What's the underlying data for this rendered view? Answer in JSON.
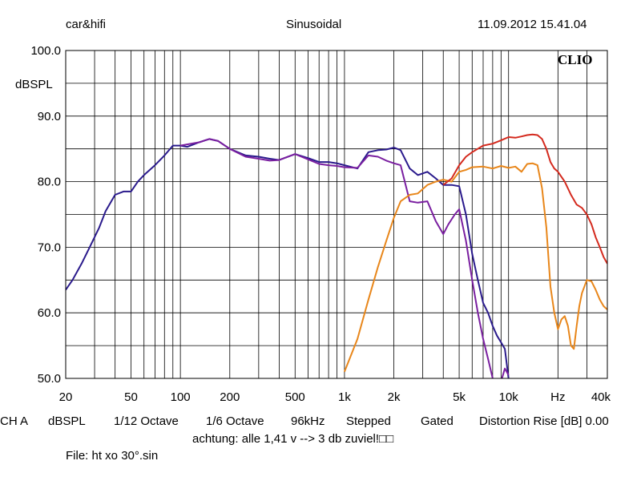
{
  "header": {
    "left": "car&hifi",
    "center": "Sinusoidal",
    "right": "11.09.2012 15.41.04"
  },
  "brand": "CLIO",
  "status": {
    "channel": "CH A",
    "unit": "dBSPL",
    "smoothing1": "1/12 Octave",
    "smoothing2": "1/6 Octave",
    "rate": "96kHz",
    "mode": "Stepped",
    "gating": "Gated",
    "distortion": "Distortion Rise [dB] 0.00"
  },
  "note": "achtung: alle 1,41 v --> 3 db zuviel!□□",
  "file": "File: ht xo 30°.sin",
  "chart_data": {
    "type": "line",
    "title": "",
    "xlabel": "Hz",
    "ylabel": "dBSPL",
    "xscale": "log",
    "xlim": [
      20,
      40000
    ],
    "ylim": [
      50,
      100
    ],
    "y_ticks": [
      "100.0",
      "90.0",
      "80.0",
      "70.0",
      "60.0",
      "50.0"
    ],
    "x_ticks": [
      "20",
      "50",
      "100",
      "200",
      "500",
      "1k",
      "2k",
      "5k",
      "10k",
      "Hz",
      "40k"
    ],
    "x_tick_values": [
      20,
      50,
      100,
      200,
      500,
      1000,
      2000,
      5000,
      10000,
      20000,
      40000
    ],
    "grid": true,
    "series": [
      {
        "color": "#2a1a8c",
        "x": [
          20,
          22,
          25,
          28,
          32,
          35,
          40,
          45,
          50,
          55,
          60,
          70,
          80,
          90,
          100,
          110,
          130,
          150,
          170,
          200,
          250,
          300,
          350,
          400,
          500,
          600,
          700,
          800,
          900,
          1000,
          1200,
          1400,
          1600,
          1800,
          2000,
          2200,
          2500,
          2800,
          3200,
          3600,
          4000,
          4500,
          5000,
          5500,
          6000,
          6500,
          7000,
          7500,
          8000,
          8500,
          9000,
          9500,
          10000
        ],
        "y": [
          63.5,
          65,
          67.5,
          70,
          73,
          75.5,
          78,
          78.5,
          78.5,
          80,
          81,
          82.5,
          84,
          85.5,
          85.5,
          85.3,
          86,
          86.5,
          86.2,
          85,
          84,
          83.8,
          83.5,
          83.3,
          84.2,
          83.6,
          83,
          83,
          82.8,
          82.5,
          82,
          84.5,
          84.8,
          84.9,
          85.2,
          84.8,
          82,
          81,
          81.5,
          80.5,
          79.5,
          79.5,
          79.3,
          75,
          69,
          65,
          61.5,
          60,
          58,
          56.5,
          55.5,
          54.5,
          50
        ]
      },
      {
        "color": "#7a1fa0",
        "x": [
          100,
          130,
          150,
          170,
          200,
          250,
          300,
          350,
          400,
          500,
          600,
          700,
          800,
          900,
          1000,
          1200,
          1400,
          1600,
          1800,
          2000,
          2200,
          2500,
          2800,
          3200,
          3600,
          4000,
          4300,
          4700,
          5000,
          5500,
          6000,
          6500,
          7000,
          7500,
          8000,
          8500,
          9000,
          9500,
          10000
        ],
        "y": [
          85.5,
          86,
          86.5,
          86.2,
          85,
          83.8,
          83.5,
          83.2,
          83.3,
          84.2,
          83.4,
          82.7,
          82.5,
          82.4,
          82.2,
          82.1,
          84,
          83.8,
          83.2,
          82.8,
          82.5,
          77,
          76.8,
          77,
          74,
          72,
          73.5,
          75,
          75.8,
          71,
          65,
          60,
          56,
          53,
          50,
          49.5,
          49.5,
          51.5,
          50.5
        ]
      },
      {
        "color": "#e8861a",
        "x": [
          1000,
          1200,
          1400,
          1600,
          1800,
          2000,
          2200,
          2500,
          2800,
          3200,
          3600,
          4000,
          4500,
          5000,
          5500,
          6000,
          7000,
          8000,
          9000,
          10000,
          11000,
          12000,
          13000,
          14000,
          15000,
          16000,
          17000,
          18000,
          19000,
          20000,
          21000,
          22000,
          23000,
          24000,
          25000,
          26000,
          27000,
          28000,
          30000,
          32000,
          34000,
          36000,
          38000,
          40000
        ],
        "y": [
          51,
          56,
          62,
          67,
          71,
          74.5,
          77,
          78,
          78.2,
          79.5,
          80,
          80.3,
          80,
          81.5,
          81.8,
          82.2,
          82.3,
          82,
          82.4,
          82.1,
          82.3,
          81.5,
          82.7,
          82.8,
          82.5,
          79,
          73,
          64,
          60,
          57.5,
          59,
          59.5,
          58,
          55,
          54.5,
          58,
          61,
          63,
          65,
          64.8,
          63.5,
          62,
          61,
          60.5
        ]
      },
      {
        "color": "#d42a1e",
        "x": [
          4000,
          4500,
          5000,
          5500,
          6000,
          7000,
          8000,
          9000,
          10000,
          11000,
          12000,
          13000,
          14000,
          15000,
          16000,
          17000,
          18000,
          19000,
          20000,
          22000,
          24000,
          26000,
          28000,
          30000,
          32000,
          34000,
          36000,
          38000,
          40000
        ],
        "y": [
          79.5,
          80.5,
          82.5,
          83.8,
          84.5,
          85.5,
          85.8,
          86.3,
          86.8,
          86.7,
          86.9,
          87.1,
          87.2,
          87.1,
          86.5,
          85,
          83,
          82,
          81.5,
          80,
          78,
          76.5,
          76,
          75,
          73.5,
          71.5,
          70,
          68.5,
          67.5
        ]
      }
    ]
  }
}
